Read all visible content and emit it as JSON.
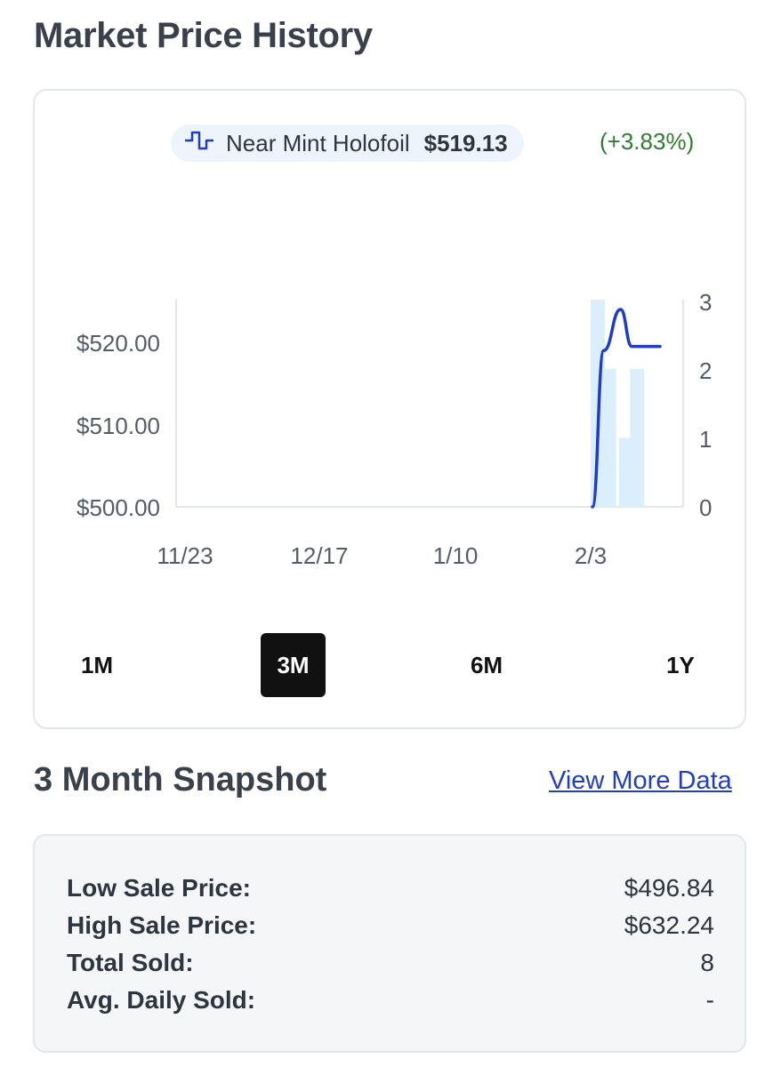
{
  "header": {
    "title": "Market Price History"
  },
  "legend": {
    "icon": "step-line-icon",
    "label": "Near Mint Holofoil",
    "price": "$519.13",
    "change": "(+3.83%)",
    "line_color": "#1f3cc8",
    "bar_color": "#dbeefc",
    "change_color": "#2e7d32"
  },
  "chart_data": {
    "type": "line",
    "x_ticks": [
      "11/23",
      "12/17",
      "1/10",
      "2/3"
    ],
    "y_left_ticks": [
      "$520.00",
      "$510.00",
      "$500.00"
    ],
    "y_right_ticks": [
      "3",
      "2",
      "1",
      "0"
    ],
    "y_left_range": [
      500,
      525
    ],
    "y_right_range": [
      0,
      3
    ],
    "series": [
      {
        "name": "Near Mint Holofoil",
        "type": "line",
        "axis": "left",
        "x": [
          "2/3",
          "2/5",
          "2/8",
          "2/10",
          "2/13",
          "2/15"
        ],
        "values": [
          500,
          519,
          524,
          519.5,
          519.5,
          519.5
        ]
      },
      {
        "type": "bar",
        "axis": "right",
        "x": [
          "2/3",
          "2/5",
          "2/8",
          "2/10"
        ],
        "values": [
          3,
          2,
          1,
          2
        ]
      }
    ]
  },
  "ranges": {
    "items": [
      {
        "key": "1m",
        "label": "1M"
      },
      {
        "key": "3m",
        "label": "3M"
      },
      {
        "key": "6m",
        "label": "6M"
      },
      {
        "key": "1y",
        "label": "1Y"
      }
    ],
    "active": "3M"
  },
  "snapshot": {
    "title": "3 Month Snapshot",
    "link": "View More Data",
    "rows": [
      {
        "label": "Low Sale Price:",
        "value": "$496.84"
      },
      {
        "label": "High Sale Price:",
        "value": "$632.24"
      },
      {
        "label": "Total Sold:",
        "value": "8"
      },
      {
        "label": "Avg. Daily Sold:",
        "value": "-"
      }
    ]
  }
}
